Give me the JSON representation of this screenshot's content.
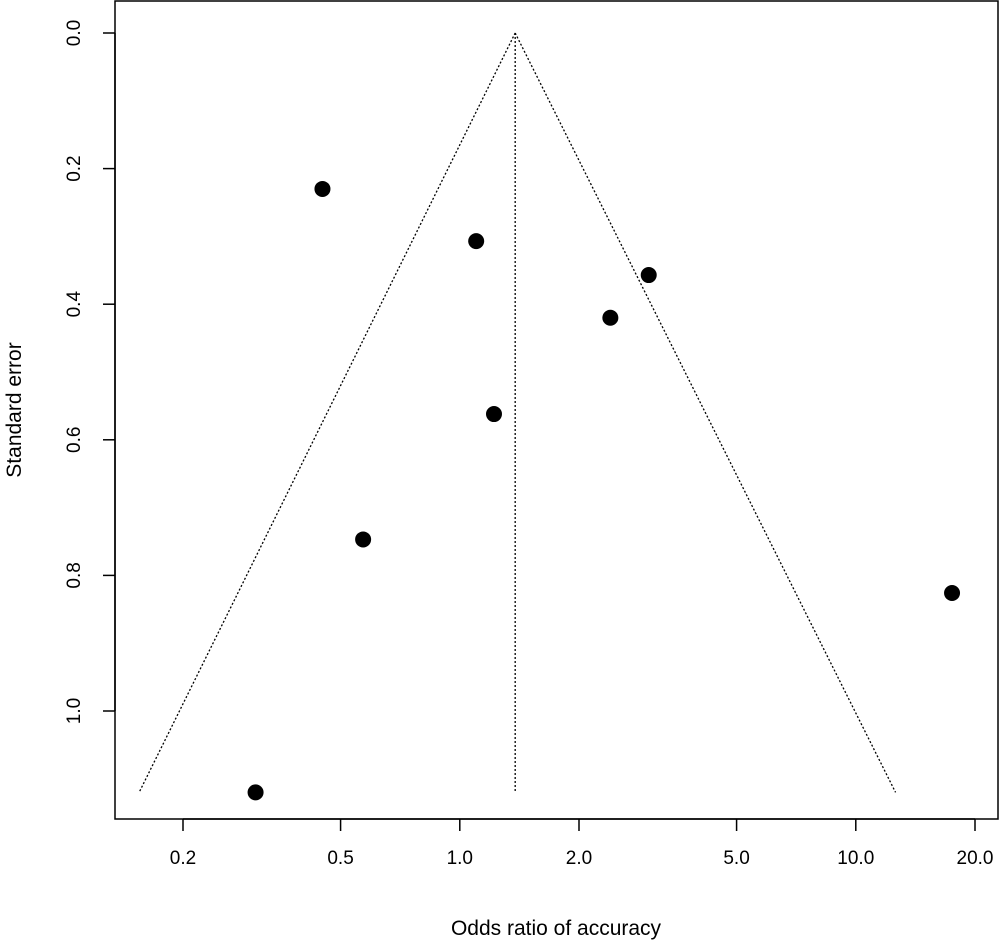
{
  "chart_data": {
    "type": "scatter",
    "subtype": "funnel",
    "title": "",
    "xlabel": "Odds ratio of accuracy",
    "ylabel": "Standard error",
    "x_scale": "log",
    "y_reversed": true,
    "xlim": [
      0.135,
      20.5
    ],
    "ylim": [
      0.0,
      1.12
    ],
    "xticks": [
      "0.2",
      "0.5",
      "1.0",
      "2.0",
      "5.0",
      "10.0",
      "20.0"
    ],
    "xtick_values": [
      0.2,
      0.5,
      1.0,
      2.0,
      5.0,
      10.0,
      20.0
    ],
    "yticks": [
      "0.0",
      "0.2",
      "0.4",
      "0.6",
      "0.8",
      "1.0"
    ],
    "ytick_values": [
      0.0,
      0.2,
      0.4,
      0.6,
      0.8,
      1.0
    ],
    "pooled_or": 1.38,
    "funnel": {
      "apex": {
        "x": 1.38,
        "y": 0.0
      },
      "left_base": {
        "x": 0.155,
        "y": 1.12
      },
      "right_base": {
        "x": 12.6,
        "y": 1.12
      }
    },
    "points": [
      {
        "x": 0.45,
        "y": 0.23
      },
      {
        "x": 1.1,
        "y": 0.307
      },
      {
        "x": 3.0,
        "y": 0.357
      },
      {
        "x": 2.4,
        "y": 0.42
      },
      {
        "x": 1.22,
        "y": 0.562
      },
      {
        "x": 0.57,
        "y": 0.747
      },
      {
        "x": 17.5,
        "y": 0.826
      },
      {
        "x": 0.305,
        "y": 1.12
      }
    ],
    "grid": false,
    "legend": "none"
  }
}
